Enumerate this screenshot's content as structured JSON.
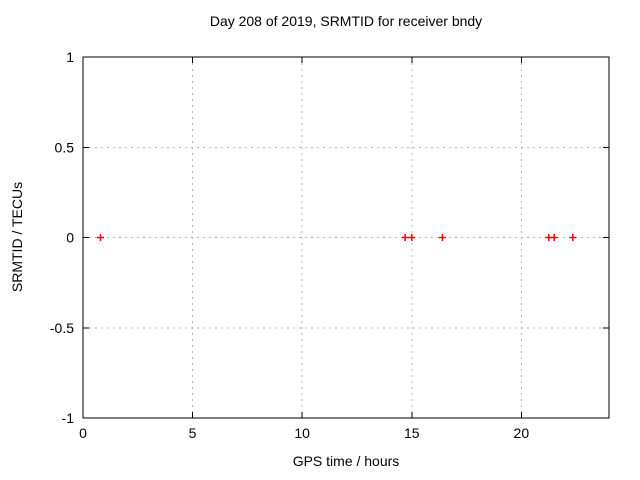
{
  "chart_data": {
    "type": "scatter",
    "title": "Day 208 of 2019, SRMTID for receiver bndy",
    "xlabel": "GPS time / hours",
    "ylabel": "SRMTID / TECUs",
    "xlim": [
      0,
      24
    ],
    "ylim": [
      -1,
      1
    ],
    "x_ticks": [
      0,
      5,
      10,
      15,
      20
    ],
    "x_tick_labels": [
      "0",
      "5",
      "10",
      "15",
      "20"
    ],
    "y_ticks": [
      -1,
      -0.5,
      0,
      0.5,
      1
    ],
    "y_tick_labels": [
      "-1",
      "-0.5",
      "0",
      "0.5",
      "1"
    ],
    "grid": true,
    "legend": "none",
    "series": [
      {
        "name": "SRMTID",
        "marker": "plus",
        "color": "#ff0000",
        "points": [
          {
            "x": 0.8,
            "y": 0
          },
          {
            "x": 14.7,
            "y": 0
          },
          {
            "x": 15.0,
            "y": 0
          },
          {
            "x": 16.4,
            "y": 0
          },
          {
            "x": 21.25,
            "y": 0
          },
          {
            "x": 21.5,
            "y": 0
          },
          {
            "x": 22.35,
            "y": 0
          }
        ]
      }
    ],
    "colors": {
      "background": "#ffffff",
      "axis": "#000000",
      "grid": "#b4b4b4",
      "text": "#000000"
    }
  }
}
